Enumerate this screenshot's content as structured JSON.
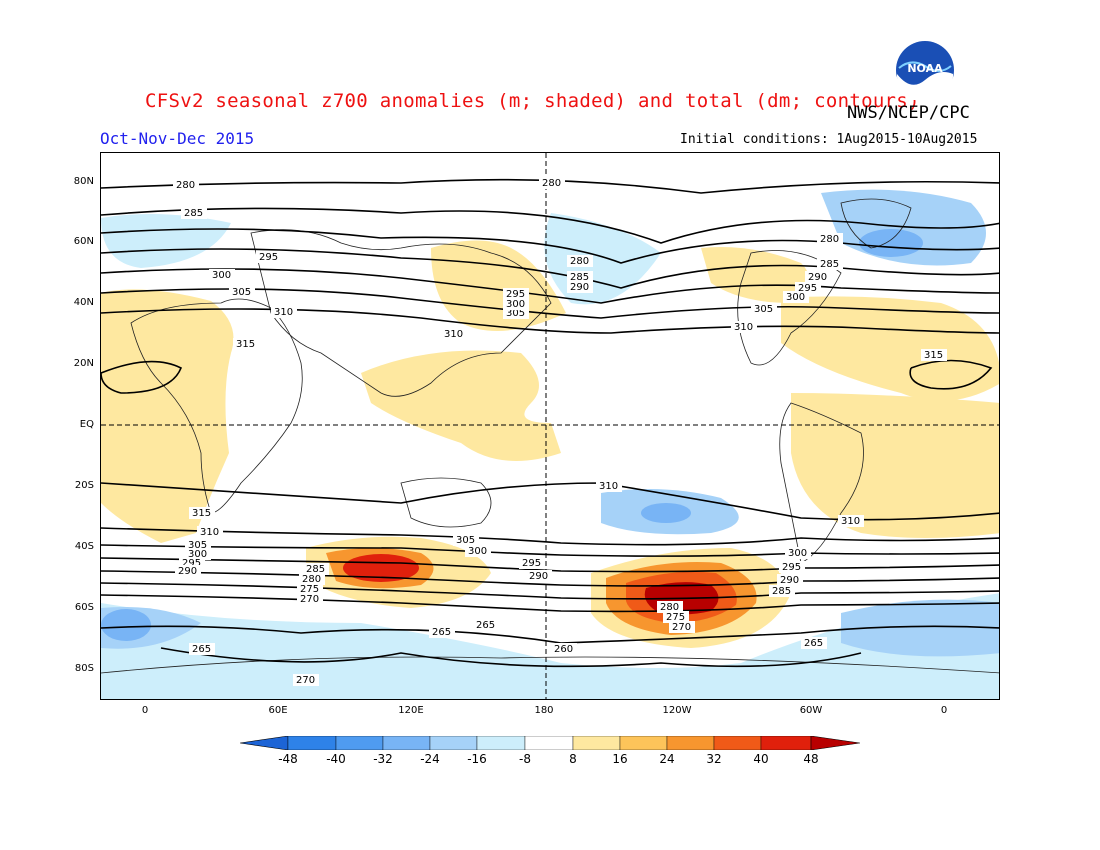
{
  "title": "CFSv2 seasonal z700 anomalies (m; shaded) and total (dm; contours)",
  "agency": "NWS/NCEP/CPC",
  "season": "Oct-Nov-Dec 2015",
  "initial_conditions": "Initial conditions: 1Aug2015-10Aug2015",
  "logo_text": "NOAA",
  "lat_labels": [
    "80N",
    "60N",
    "40N",
    "20N",
    "EQ",
    "20S",
    "40S",
    "60S",
    "80S"
  ],
  "lon_labels": [
    "0",
    "60E",
    "120E",
    "180",
    "120W",
    "60W",
    "0"
  ],
  "colorbar": {
    "labels": [
      "-48",
      "-40",
      "-32",
      "-24",
      "-16",
      "-8",
      "8",
      "16",
      "24",
      "32",
      "40",
      "48"
    ],
    "colors": [
      "#1c64d6",
      "#2e82e8",
      "#4f9bf0",
      "#78b4f5",
      "#a6d2f8",
      "#cdeefb",
      "#ffffff",
      "#fee8a0",
      "#fdc45a",
      "#f7962f",
      "#f05a18",
      "#e0200c",
      "#b80000"
    ]
  },
  "anomaly_colors": {
    "pos1": "#fee8a0",
    "pos2": "#fdc45a",
    "pos3": "#f7962f",
    "pos4": "#f05a18",
    "pos5": "#e0200c",
    "pos6": "#b80000",
    "neg1": "#cdeefb",
    "neg2": "#a6d2f8",
    "neg3": "#78b4f5",
    "neg4": "#4f9bf0"
  },
  "contour_labels": [
    "280",
    "285",
    "295",
    "300",
    "305",
    "310",
    "315",
    "310",
    "305",
    "300",
    "295",
    "290",
    "285",
    "280",
    "275",
    "270",
    "265",
    "260",
    "265",
    "280",
    "285",
    "290",
    "295",
    "300",
    "305",
    "310",
    "315",
    "310",
    "305",
    "300",
    "295",
    "290",
    "285",
    "280",
    "275",
    "270",
    "265",
    "270",
    "285",
    "295",
    "300",
    "305",
    "310",
    "315",
    "310",
    "305",
    "300",
    "295",
    "290",
    "285",
    "280",
    "275",
    "270",
    "265",
    "310",
    "305",
    "300",
    "295",
    "290",
    "285",
    "280",
    "275",
    "270",
    "265"
  ]
}
